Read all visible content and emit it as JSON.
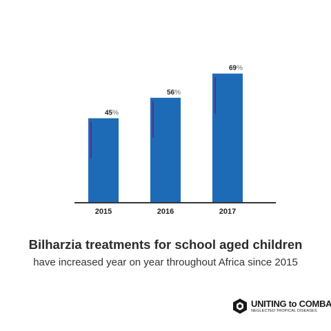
{
  "chart_data": {
    "type": "bar",
    "categories": [
      "2015",
      "2016",
      "2017"
    ],
    "values": [
      45,
      56,
      69
    ],
    "value_labels": [
      "45%",
      "56%",
      "69%"
    ],
    "unit": "%",
    "ylim": [
      0,
      100
    ],
    "grid": false,
    "colors": {
      "bar": "#1d6bb6",
      "accent_line": "#5b2d84",
      "axis": "#333333"
    }
  },
  "caption": {
    "title": "Bilharzia treatments for school aged children",
    "subtitle": "have increased year on year throughout Africa since 2015"
  },
  "logo": {
    "name": "UNITING to COMBAT",
    "tagline": "NEGLECTED TROPICAL DISEASES"
  }
}
